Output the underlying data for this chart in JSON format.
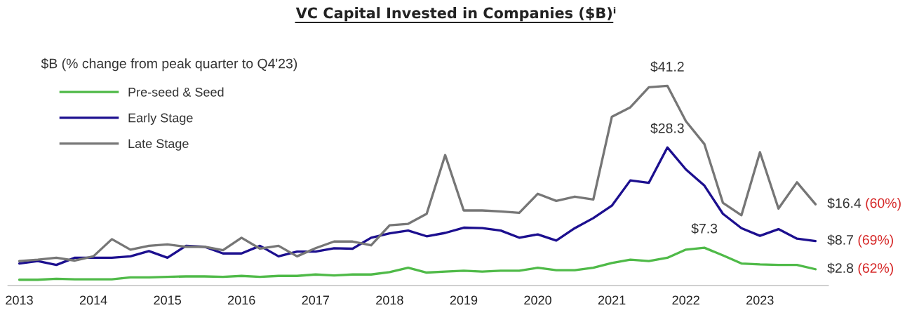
{
  "chart_data": {
    "type": "line",
    "title": "VC Capital Invested in Companies ($B)ⁱ",
    "subtitle": "$B (% change from peak quarter to Q4'23)",
    "x": [
      2013,
      2013.25,
      2013.5,
      2013.75,
      2014,
      2014.25,
      2014.5,
      2014.75,
      2015,
      2015.25,
      2015.5,
      2015.75,
      2016,
      2016.25,
      2016.5,
      2016.75,
      2017,
      2017.25,
      2017.5,
      2017.75,
      2018,
      2018.25,
      2018.5,
      2018.75,
      2019,
      2019.25,
      2019.5,
      2019.75,
      2020,
      2020.25,
      2020.5,
      2020.75,
      2021,
      2021.25,
      2021.5,
      2021.75,
      2022,
      2022.25,
      2022.5,
      2022.75,
      2023,
      2023.25,
      2023.5,
      2023.75
    ],
    "series": [
      {
        "name": "Pre-seed & Seed",
        "color": "#4fba48",
        "values": [
          0.6,
          0.6,
          0.8,
          0.7,
          0.7,
          0.7,
          1.1,
          1.1,
          1.2,
          1.3,
          1.3,
          1.2,
          1.4,
          1.2,
          1.4,
          1.4,
          1.7,
          1.5,
          1.7,
          1.7,
          2.2,
          3.1,
          2.1,
          2.3,
          2.5,
          2.3,
          2.5,
          2.5,
          3.1,
          2.6,
          2.6,
          3.1,
          4.1,
          4.8,
          4.5,
          5.2,
          6.9,
          7.3,
          5.7,
          4.0,
          3.8,
          3.7,
          3.7,
          2.8
        ],
        "value_labels": [
          null,
          null,
          null,
          null,
          null,
          null,
          null,
          null,
          null,
          null,
          null,
          null,
          null,
          null,
          null,
          null,
          null,
          null,
          null,
          null,
          null,
          null,
          null,
          null,
          null,
          null,
          null,
          null,
          null,
          null,
          null,
          null,
          null,
          null,
          null,
          null,
          null,
          "$7.3",
          null,
          null,
          null,
          null,
          null,
          "$2.8 (62%)"
        ]
      },
      {
        "name": "Early Stage",
        "color": "#1c0f8f",
        "values": [
          4.0,
          4.5,
          3.7,
          5.2,
          5.2,
          5.2,
          5.5,
          6.6,
          5.2,
          7.7,
          7.5,
          6.1,
          6.1,
          7.7,
          5.5,
          6.5,
          6.5,
          7.2,
          7.1,
          9.4,
          10.3,
          10.9,
          9.7,
          10.4,
          11.5,
          11.4,
          10.9,
          9.4,
          10.1,
          8.8,
          11.4,
          13.5,
          16.1,
          21.4,
          20.9,
          28.3,
          23.7,
          20.3,
          14.4,
          11.4,
          9.8,
          11.2,
          9.2,
          8.7
        ],
        "value_labels": [
          null,
          null,
          null,
          null,
          null,
          null,
          null,
          null,
          null,
          null,
          null,
          null,
          null,
          null,
          null,
          null,
          null,
          null,
          null,
          null,
          null,
          null,
          null,
          null,
          null,
          null,
          null,
          null,
          null,
          null,
          null,
          null,
          null,
          null,
          null,
          "$28.3",
          null,
          null,
          null,
          null,
          null,
          null,
          null,
          "$8.7 (69%)"
        ]
      },
      {
        "name": "Late Stage",
        "color": "#767676",
        "values": [
          4.5,
          4.8,
          5.2,
          4.6,
          5.5,
          9.1,
          6.9,
          7.7,
          8.0,
          7.5,
          7.5,
          6.8,
          9.4,
          7.1,
          7.7,
          5.5,
          7.2,
          8.6,
          8.6,
          7.8,
          12.0,
          12.3,
          14.4,
          26.7,
          15.1,
          15.1,
          14.9,
          14.6,
          18.6,
          17.1,
          18.0,
          17.4,
          34.7,
          36.7,
          40.9,
          41.2,
          33.8,
          29.0,
          16.7,
          14.1,
          27.3,
          15.5,
          21.0,
          16.4
        ],
        "value_labels": [
          null,
          null,
          null,
          null,
          null,
          null,
          null,
          null,
          null,
          null,
          null,
          null,
          null,
          null,
          null,
          null,
          null,
          null,
          null,
          null,
          null,
          null,
          null,
          null,
          null,
          null,
          null,
          null,
          null,
          null,
          null,
          null,
          null,
          null,
          null,
          "$41.2",
          null,
          null,
          null,
          null,
          null,
          null,
          null,
          "$16.4 (60%)"
        ]
      }
    ],
    "xlim": [
      2012.85,
      2023.92
    ],
    "xticks": [
      2013,
      2014,
      2015,
      2016,
      2017,
      2018,
      2019,
      2020,
      2021,
      2022,
      2023
    ],
    "tick_labels": "x",
    "grid": false,
    "legend": "top left",
    "marker": "none",
    "line_style": "solid"
  }
}
